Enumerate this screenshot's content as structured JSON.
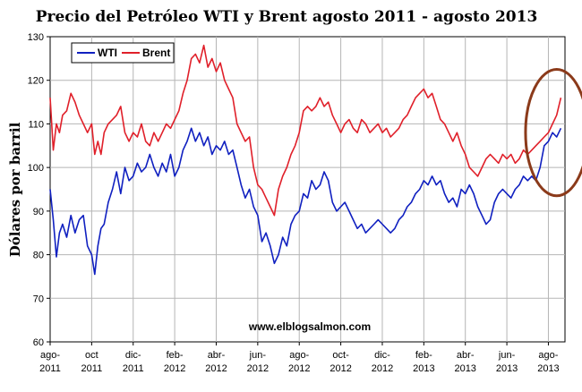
{
  "chart_data": {
    "type": "line",
    "title": "Precio del Petróleo WTI y Brent agosto 2011 - agosto 2013",
    "ylabel": "Dólares por barril",
    "xlabel": "",
    "ylim": [
      60,
      130
    ],
    "yticks": [
      60,
      70,
      80,
      90,
      100,
      110,
      120,
      130
    ],
    "xlim": [
      0,
      24.8
    ],
    "x_ticks": [
      {
        "x": 0,
        "line1": "ago-",
        "line2": "2011"
      },
      {
        "x": 2,
        "line1": "oct",
        "line2": "2011"
      },
      {
        "x": 4,
        "line1": "dic-",
        "line2": "2011"
      },
      {
        "x": 6,
        "line1": "feb-",
        "line2": "2012"
      },
      {
        "x": 8,
        "line1": "abr-",
        "line2": "2012"
      },
      {
        "x": 10,
        "line1": "jun-",
        "line2": "2012"
      },
      {
        "x": 12,
        "line1": "ago-",
        "line2": "2012"
      },
      {
        "x": 14,
        "line1": "oct-",
        "line2": "2012"
      },
      {
        "x": 16,
        "line1": "dic-",
        "line2": "2012"
      },
      {
        "x": 18,
        "line1": "feb-",
        "line2": "2013"
      },
      {
        "x": 20,
        "line1": "abr-",
        "line2": "2013"
      },
      {
        "x": 22,
        "line1": "jun-",
        "line2": "2013"
      },
      {
        "x": 24,
        "line1": "ago-",
        "line2": "2013"
      }
    ],
    "grid": true,
    "legend_position": "top-left",
    "watermark": "www.elblogsalmon.com",
    "highlight_ellipse": {
      "x_center": 24.4,
      "y_center": 108,
      "x_radius": 1.5,
      "y_radius": 14.5,
      "color": "#8B3A1A"
    },
    "series": [
      {
        "name": "WTI",
        "color": "#1020c0",
        "x": [
          0,
          0.15,
          0.3,
          0.45,
          0.6,
          0.8,
          1.0,
          1.2,
          1.4,
          1.6,
          1.8,
          2.0,
          2.15,
          2.3,
          2.45,
          2.6,
          2.8,
          3.0,
          3.2,
          3.4,
          3.6,
          3.8,
          4.0,
          4.2,
          4.4,
          4.6,
          4.8,
          5.0,
          5.2,
          5.4,
          5.6,
          5.8,
          6.0,
          6.2,
          6.4,
          6.6,
          6.8,
          7.0,
          7.2,
          7.4,
          7.6,
          7.8,
          8.0,
          8.2,
          8.4,
          8.6,
          8.8,
          9.0,
          9.2,
          9.4,
          9.6,
          9.8,
          10.0,
          10.2,
          10.4,
          10.6,
          10.8,
          11.0,
          11.2,
          11.4,
          11.6,
          11.8,
          12.0,
          12.2,
          12.4,
          12.6,
          12.8,
          13.0,
          13.2,
          13.4,
          13.6,
          13.8,
          14.0,
          14.2,
          14.4,
          14.6,
          14.8,
          15.0,
          15.2,
          15.4,
          15.6,
          15.8,
          16.0,
          16.2,
          16.4,
          16.6,
          16.8,
          17.0,
          17.2,
          17.4,
          17.6,
          17.8,
          18.0,
          18.2,
          18.4,
          18.6,
          18.8,
          19.0,
          19.2,
          19.4,
          19.6,
          19.8,
          20.0,
          20.2,
          20.4,
          20.6,
          20.8,
          21.0,
          21.2,
          21.4,
          21.6,
          21.8,
          22.0,
          22.2,
          22.4,
          22.6,
          22.8,
          23.0,
          23.2,
          23.4,
          23.6,
          23.8,
          24.0,
          24.2,
          24.4,
          24.6
        ],
        "values": [
          95,
          88,
          79.5,
          85,
          87,
          84,
          89,
          85,
          88,
          89,
          82,
          80,
          75.5,
          82,
          86,
          87,
          92,
          95,
          99,
          94,
          100,
          97,
          98,
          101,
          99,
          100,
          103,
          100,
          98,
          101,
          99,
          103,
          98,
          100,
          104,
          106,
          109,
          106,
          108,
          105,
          107,
          103,
          105,
          104,
          106,
          103,
          104,
          100,
          96,
          93,
          95,
          91,
          89,
          83,
          85,
          82,
          78,
          80,
          84,
          82,
          87,
          89,
          90,
          94,
          93,
          97,
          95,
          96,
          99,
          97,
          92,
          90,
          91,
          92,
          90,
          88,
          86,
          87,
          85,
          86,
          87,
          88,
          87,
          86,
          85,
          86,
          88,
          89,
          91,
          92,
          94,
          95,
          97,
          96,
          98,
          96,
          97,
          94,
          92,
          93,
          91,
          95,
          94,
          96,
          94,
          91,
          89,
          87,
          88,
          92,
          94,
          95,
          94,
          93,
          95,
          96,
          98,
          97,
          98,
          97,
          100,
          105,
          106,
          108,
          107,
          109
        ]
      },
      {
        "name": "Brent",
        "color": "#e0202a",
        "x": [
          0,
          0.15,
          0.3,
          0.45,
          0.6,
          0.8,
          1.0,
          1.2,
          1.4,
          1.6,
          1.8,
          2.0,
          2.15,
          2.3,
          2.45,
          2.6,
          2.8,
          3.0,
          3.2,
          3.4,
          3.6,
          3.8,
          4.0,
          4.2,
          4.4,
          4.6,
          4.8,
          5.0,
          5.2,
          5.4,
          5.6,
          5.8,
          6.0,
          6.2,
          6.4,
          6.6,
          6.8,
          7.0,
          7.2,
          7.4,
          7.6,
          7.8,
          8.0,
          8.2,
          8.4,
          8.6,
          8.8,
          9.0,
          9.2,
          9.4,
          9.6,
          9.8,
          10.0,
          10.2,
          10.4,
          10.6,
          10.8,
          11.0,
          11.2,
          11.4,
          11.6,
          11.8,
          12.0,
          12.2,
          12.4,
          12.6,
          12.8,
          13.0,
          13.2,
          13.4,
          13.6,
          13.8,
          14.0,
          14.2,
          14.4,
          14.6,
          14.8,
          15.0,
          15.2,
          15.4,
          15.6,
          15.8,
          16.0,
          16.2,
          16.4,
          16.6,
          16.8,
          17.0,
          17.2,
          17.4,
          17.6,
          17.8,
          18.0,
          18.2,
          18.4,
          18.6,
          18.8,
          19.0,
          19.2,
          19.4,
          19.6,
          19.8,
          20.0,
          20.2,
          20.4,
          20.6,
          20.8,
          21.0,
          21.2,
          21.4,
          21.6,
          21.8,
          22.0,
          22.2,
          22.4,
          22.6,
          22.8,
          23.0,
          23.2,
          23.4,
          23.6,
          23.8,
          24.0,
          24.2,
          24.4,
          24.6
        ],
        "values": [
          116,
          104,
          110,
          108,
          112,
          113,
          117,
          115,
          112,
          110,
          108,
          110,
          103,
          106,
          103,
          108,
          110,
          111,
          112,
          114,
          108,
          106,
          108,
          107,
          110,
          106,
          105,
          108,
          106,
          108,
          110,
          109,
          111,
          113,
          117,
          120,
          125,
          126,
          124,
          128,
          123,
          125,
          122,
          124,
          120,
          118,
          116,
          110,
          108,
          106,
          107,
          100,
          96,
          95,
          93,
          91,
          89,
          95,
          98,
          100,
          103,
          105,
          108,
          113,
          114,
          113,
          114,
          116,
          114,
          115,
          112,
          110,
          108,
          110,
          111,
          109,
          108,
          111,
          110,
          108,
          109,
          110,
          108,
          109,
          107,
          108,
          109,
          111,
          112,
          114,
          116,
          117,
          118,
          116,
          117,
          114,
          111,
          110,
          108,
          106,
          108,
          105,
          103,
          100,
          99,
          98,
          100,
          102,
          103,
          102,
          101,
          103,
          102,
          103,
          101,
          102,
          104,
          103,
          104,
          105,
          106,
          107,
          108,
          110,
          112,
          116
        ]
      }
    ]
  }
}
